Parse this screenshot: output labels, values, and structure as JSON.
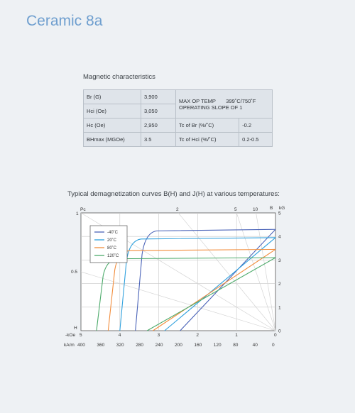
{
  "title": "Ceramic 8a",
  "magnetic": {
    "section_label": "Magnetic characteristics",
    "rows": [
      {
        "label": "Br (G)",
        "value": "3,900"
      },
      {
        "label": "Hci (Oe)",
        "value": "3,050"
      },
      {
        "label": "Hc (Oe)",
        "value": "2,950"
      },
      {
        "label": "BHmax (MGOe)",
        "value": "3.5"
      }
    ],
    "max_op_temp_label": "MAX OP TEMP",
    "max_op_temp_value": "399˚C/750˚F",
    "operating_slope": "OPERATING SLOPE OF 1",
    "tc_br_label": "Tc of Br (%/˚C)",
    "tc_br_value": "-0.2",
    "tc_hci_label": "Tc of Hci (%/˚C)",
    "tc_hci_value": "0.2-0.5"
  },
  "curves_label": "Typical demagnetization curves B(H) and J(H) at various temperatures:",
  "chart_data": {
    "type": "line",
    "title": "",
    "top_labels": {
      "pc": "Pc",
      "pc_ticks": [
        "2",
        "5",
        "10"
      ],
      "b_label": "B",
      "kg_label": "kG"
    },
    "left_labels": {
      "top": "1",
      "mid": "0.5",
      "h": "H",
      "koe": "-kOe",
      "kam": "kA/m"
    },
    "xlabel_koe_ticks": [
      "5",
      "4",
      "3",
      "2",
      "1",
      "0"
    ],
    "xlabel_kam_ticks": [
      "400",
      "360",
      "320",
      "280",
      "240",
      "200",
      "160",
      "120",
      "80",
      "40",
      "0"
    ],
    "y_ticks": [
      "5",
      "4",
      "3",
      "2",
      "1",
      "0"
    ],
    "xlim_koe": [
      5,
      0
    ],
    "ylim_kg": [
      0,
      5
    ],
    "series": [
      {
        "name": "-40˚C",
        "color": "#4a63b8",
        "hci": 3.6,
        "hc": 2.45,
        "br": 4.3
      },
      {
        "name": "20˚C",
        "color": "#2ea0dd",
        "hci": 4.0,
        "hc": 2.85,
        "br": 3.95
      },
      {
        "name": "80˚C",
        "color": "#f28d3c",
        "hci": 4.3,
        "hc": 3.15,
        "br": 3.45
      },
      {
        "name": "120˚C",
        "color": "#4caa6a",
        "hci": 4.6,
        "hc": 3.3,
        "br": 3.1
      }
    ]
  }
}
